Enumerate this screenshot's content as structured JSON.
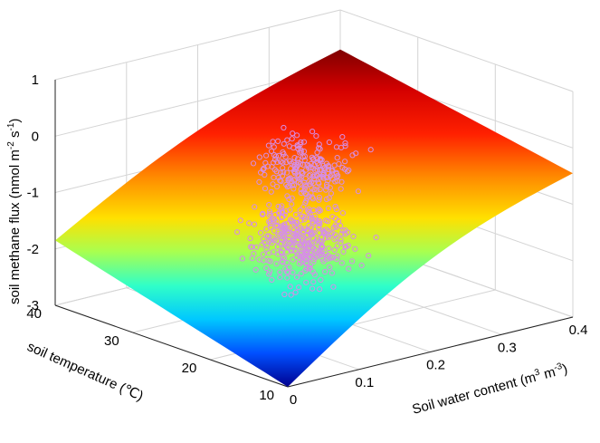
{
  "chart_data": {
    "type": "surface3d",
    "title": "",
    "x_axis": {
      "label": "Soil water content (m^3 m^-3)",
      "lim": [
        0,
        0.4
      ],
      "ticks": [
        0,
        0.1,
        0.2,
        0.3,
        0.4
      ],
      "tick_labels": [
        "0",
        "0.1",
        "0.2",
        "0.3",
        "0.4"
      ]
    },
    "y_axis": {
      "label": "soil temperature (℃)",
      "lim": [
        10,
        40
      ],
      "ticks": [
        10,
        20,
        30,
        40
      ],
      "tick_labels": [
        "10",
        "20",
        "30",
        "40"
      ]
    },
    "z_axis": {
      "label": "soil methane flux (nmol m^-2 s^-1)",
      "lim": [
        -3,
        1
      ],
      "ticks": [
        -3,
        -2,
        -1,
        0,
        1
      ],
      "tick_labels": [
        "-3",
        "-2",
        "-1",
        "0",
        "1"
      ]
    },
    "surface_corners": [
      {
        "x": 0.0,
        "y": 10,
        "z": -3.0
      },
      {
        "x": 0.0,
        "y": 40,
        "z": -1.85
      },
      {
        "x": 0.4,
        "y": 10,
        "z": -0.45
      },
      {
        "x": 0.4,
        "y": 40,
        "z": 0.3
      }
    ],
    "colormap": "jet",
    "grid": true,
    "scatter": {
      "color": "#d68ee6",
      "marker": "circle-open",
      "approx_points": 600
    }
  },
  "labels": {
    "xlabel_main": "Soil water content (m",
    "xlabel_e1": "3",
    "xlabel_mid": " m",
    "xlabel_e2": "-3",
    "xlabel_end": ")",
    "ylabel": "soil temperature (℃)",
    "zlabel_main": "soil methane flux (nmol m",
    "zlabel_e1": "-2",
    "zlabel_mid": " s",
    "zlabel_e2": "-1",
    "zlabel_end": ")"
  }
}
